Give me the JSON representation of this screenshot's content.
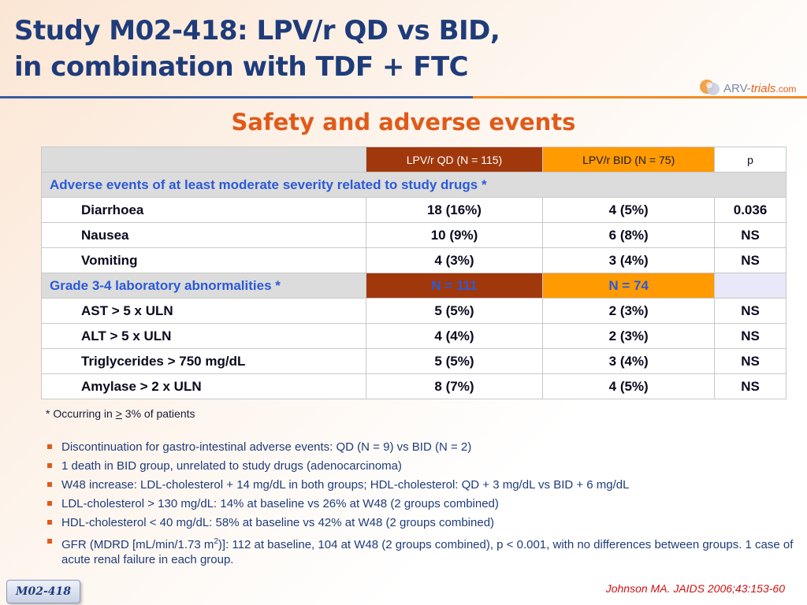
{
  "title": {
    "line1": "Study M02-418: LPV/r QD vs BID,",
    "line2": "in combination with TDF + FTC"
  },
  "logo": {
    "prefix": "ARV-",
    "em": "trials",
    "suffix": ".com"
  },
  "subtitle": "Safety and adverse events",
  "table": {
    "headers": {
      "qd": "LPV/r QD (N = 115)",
      "bid": "LPV/r BID (N = 75)",
      "p": "p"
    },
    "section1": "Adverse events of at least moderate severity related to study drugs *",
    "rows1": [
      {
        "label": "Diarrhoea",
        "qd": "18 (16%)",
        "bid": "4 (5%)",
        "p": "0.036"
      },
      {
        "label": "Nausea",
        "qd": "10 (9%)",
        "bid": "6 (8%)",
        "p": "NS"
      },
      {
        "label": "Vomiting",
        "qd": "4 (3%)",
        "bid": "3 (4%)",
        "p": "NS"
      }
    ],
    "section2": {
      "label": "Grade 3-4 laboratory abnormalities *",
      "qd": "N = 111",
      "bid": "N = 74"
    },
    "rows2": [
      {
        "label": "AST > 5 x ULN",
        "qd": "5 (5%)",
        "bid": "2 (3%)",
        "p": "NS"
      },
      {
        "label": "ALT > 5 x ULN",
        "qd": "4 (4%)",
        "bid": "2 (3%)",
        "p": "NS"
      },
      {
        "label": "Triglycerides > 750 mg/dL",
        "qd": "5 (5%)",
        "bid": "3 (4%)",
        "p": "NS"
      },
      {
        "label": "Amylase > 2 x ULN",
        "qd": "8 (7%)",
        "bid": "4 (5%)",
        "p": "NS"
      }
    ]
  },
  "footnote": {
    "pre": "* Occurring in ",
    "sym": ">",
    "post": " 3% of patients"
  },
  "bullets": [
    "Discontinuation for gastro-intestinal adverse events: QD (N = 9) vs BID (N = 2)",
    "1 death in BID group, unrelated to study drugs (adenocarcinoma)",
    "W48 increase: LDL-cholesterol + 14 mg/dL in both groups; HDL-cholesterol: QD + 3 mg/dL vs BID + 6 mg/dL",
    "LDL-cholesterol > 130 mg/dL: 14% at baseline vs 26% at W48 (2 groups combined)",
    "HDL-cholesterol < 40 mg/dL: 58% at baseline vs 42% at W48 (2 groups combined)"
  ],
  "bullet_gfr": {
    "pre": "GFR (MDRD [mL/min/1.73 m",
    "sup": "2",
    "post": ")]: 112 at baseline, 104 at W48 (2 groups combined), p < 0.001, with no differences between groups. 1 case of acute renal failure in each group."
  },
  "badge": "M02-418",
  "citation": "Johnson MA. JAIDS 2006;43:153-60",
  "colors": {
    "title": "#1f3c7a",
    "accent": "#e05a1a",
    "qd": "#a0380c",
    "bid": "#ff9a00",
    "section": "#2b5ad8"
  }
}
